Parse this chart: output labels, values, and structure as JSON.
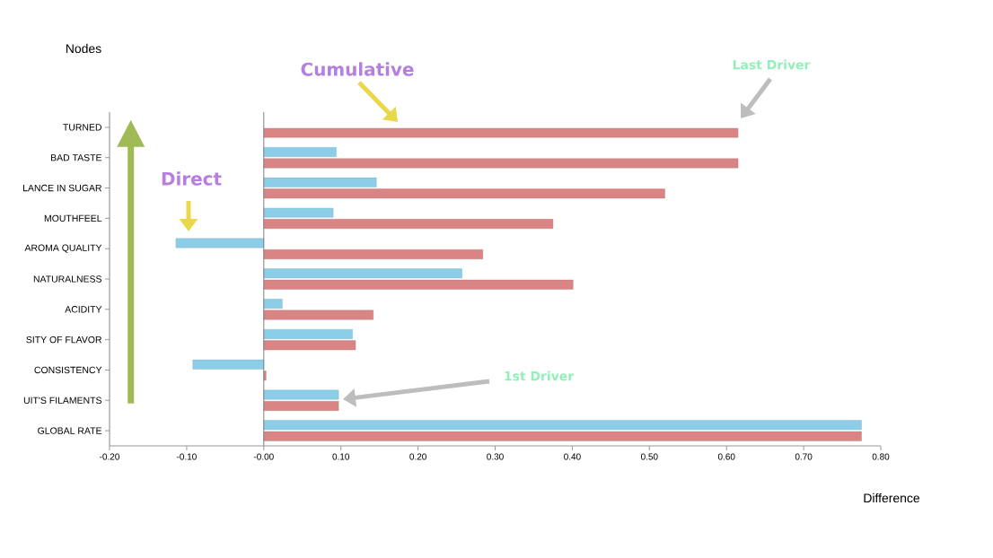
{
  "chart_data": {
    "type": "bar",
    "orientation": "horizontal",
    "ylabel": "Nodes",
    "xlabel": "Difference",
    "categories": [
      "TURNED",
      "BAD TASTE",
      "LANCE IN SUGAR",
      "MOUTHFEEL",
      "AROMA QUALITY",
      "NATURALNESS",
      "ACIDITY",
      "SITY OF FLAVOR",
      "CONSISTENCY",
      "UIT'S FILAMENTS",
      "GLOBAL  RATE"
    ],
    "series": [
      {
        "color": "#8ccde8",
        "values": [
          null,
          0.094,
          0.146,
          0.09,
          -0.114,
          0.257,
          0.024,
          0.115,
          -0.092,
          0.097,
          0.775
        ]
      },
      {
        "color": "#d98585",
        "values": [
          0.615,
          0.615,
          0.52,
          0.375,
          0.284,
          0.401,
          0.142,
          0.119,
          0.003,
          0.097,
          0.775
        ]
      }
    ],
    "xlim": [
      -0.2,
      0.8
    ],
    "xticks": [
      {
        "value": -0.2,
        "label": "-0.20"
      },
      {
        "value": -0.1,
        "label": "-0.10"
      },
      {
        "value": 0,
        "label": "-0.00"
      },
      {
        "value": 0.1,
        "label": "0.10"
      },
      {
        "value": 0.2,
        "label": "0.20"
      },
      {
        "value": 0.3,
        "label": "0.30"
      },
      {
        "value": 0.4,
        "label": "0.40"
      },
      {
        "value": 0.5,
        "label": "0.50"
      },
      {
        "value": 0.6,
        "label": "0.60"
      },
      {
        "value": 0.7,
        "label": "0.70"
      },
      {
        "value": 0.8,
        "label": "0.80"
      }
    ],
    "ref_lines": [
      {
        "axis": "x",
        "value": 0,
        "color": "#808080"
      }
    ],
    "grid": false,
    "annotations": [
      "Cumulative",
      "Last Driver",
      "Direct",
      "1st Driver"
    ]
  }
}
